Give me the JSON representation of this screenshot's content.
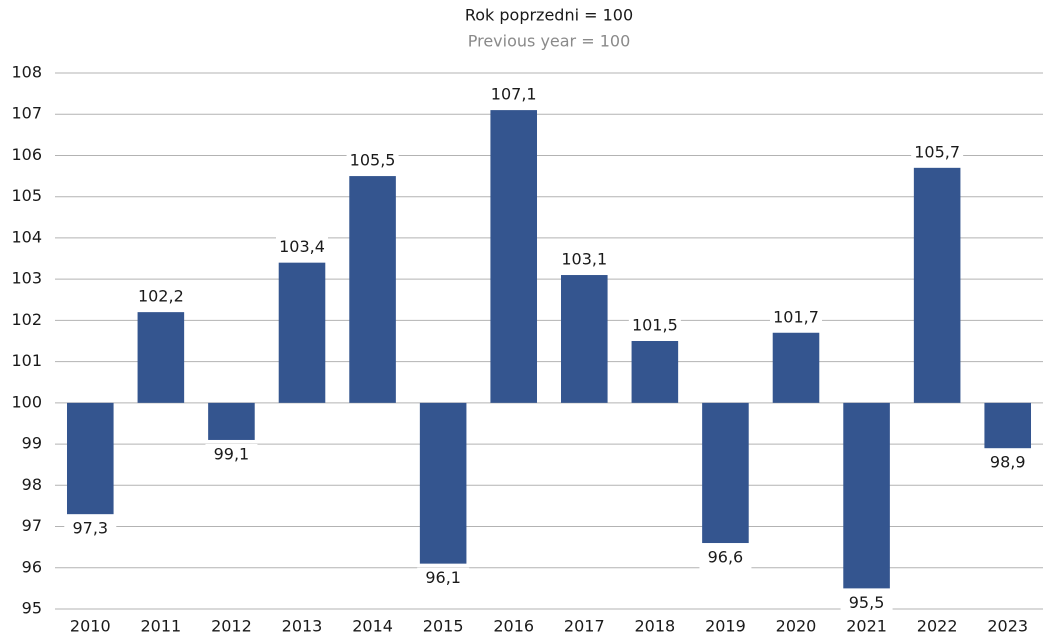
{
  "chart_data": {
    "type": "bar",
    "title": "Rok poprzedni = 100",
    "subtitle": "Previous year = 100",
    "categories": [
      "2010",
      "2011",
      "2012",
      "2013",
      "2014",
      "2015",
      "2016",
      "2017",
      "2018",
      "2019",
      "2020",
      "2021",
      "2022",
      "2023"
    ],
    "values": [
      97.3,
      102.2,
      99.1,
      103.4,
      105.5,
      96.1,
      107.1,
      103.1,
      101.5,
      96.6,
      101.7,
      95.5,
      105.7,
      98.9
    ],
    "value_labels": [
      "97,3",
      "102,2",
      "99,1",
      "103,4",
      "105,5",
      "96,1",
      "107,1",
      "103,1",
      "101,5",
      "96,6",
      "101,7",
      "95,5",
      "105,7",
      "98,9"
    ],
    "baseline": 100,
    "color": "#34558f",
    "ylim": [
      95,
      108
    ],
    "yticks": [
      95,
      96,
      97,
      98,
      99,
      100,
      101,
      102,
      103,
      104,
      105,
      106,
      107,
      108
    ],
    "grid": true
  }
}
